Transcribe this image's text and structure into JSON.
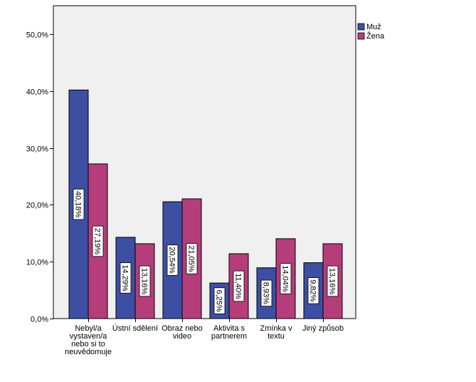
{
  "chart_data": {
    "type": "bar",
    "categories": [
      [
        "Nebyl/a",
        "vystaven/a",
        "nebo si to",
        "neuvědomuje"
      ],
      [
        "Ústní sdělení"
      ],
      [
        "Obraz nebo",
        "video"
      ],
      [
        "Aktivita s",
        "partnerem"
      ],
      [
        "Zmínka v",
        "textu"
      ],
      [
        "Jiný způsob"
      ]
    ],
    "series": [
      {
        "name": "Muž",
        "color": "#3d4fa3",
        "values": [
          40.18,
          14.29,
          20.54,
          6.25,
          8.93,
          9.82
        ],
        "labels": [
          "40,18%",
          "14,29%",
          "20,54%",
          "6,25%",
          "8,93%",
          "9,82%"
        ]
      },
      {
        "name": "Žena",
        "color": "#b53d7a",
        "values": [
          27.19,
          13.16,
          21.05,
          11.4,
          14.04,
          13.16
        ],
        "labels": [
          "27,19%",
          "13,16%",
          "21,05%",
          "11,40%",
          "14,04%",
          "13,16%"
        ]
      }
    ],
    "yticks": [
      "0,0%",
      "10,0%",
      "20,0%",
      "30,0%",
      "40,0%",
      "50,0%"
    ],
    "ylim": [
      0,
      55
    ],
    "legend_position": "top-right",
    "grid": false,
    "plot_background": "#f0f0f0"
  }
}
